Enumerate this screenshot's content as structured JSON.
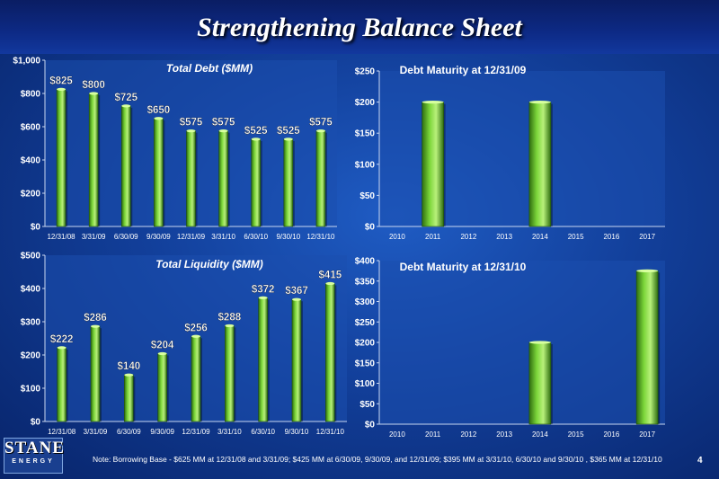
{
  "title": "Strengthening Balance Sheet",
  "footer_note": "Note: Borrowing Base - $625 MM at 12/31/08 and 3/31/09; $425 MM at 6/30/09, 9/30/09, and 12/31/09;  $395 MM at 3/31/10, 6/30/10 and 9/30/10 , $365 MM at 12/31/10",
  "page_number": "4",
  "logo": {
    "word": "STANE",
    "sub": "ENERGY"
  },
  "colors": {
    "bar": "#7cd63a",
    "bar_dark": "#2f6e10",
    "plot_bg": "#1b4fae",
    "grid": "#4f7fd0"
  },
  "chart_data": [
    {
      "type": "bar",
      "title": "Total Debt ($MM)",
      "categories": [
        "12/31/08",
        "3/31/09",
        "6/30/09",
        "9/30/09",
        "12/31/09",
        "3/31/10",
        "6/30/10",
        "9/30/10",
        "12/31/10"
      ],
      "values": [
        825,
        800,
        725,
        650,
        575,
        575,
        525,
        525,
        575
      ],
      "data_labels": [
        "$825",
        "$800",
        "$725",
        "$650",
        "$575",
        "$575",
        "$525",
        "$525",
        "$575"
      ],
      "ylim": [
        0,
        1000
      ],
      "yticks": [
        0,
        200,
        400,
        600,
        800,
        1000
      ],
      "ytick_labels": [
        "$0",
        "$200",
        "$400",
        "$600",
        "$800",
        "$1,000"
      ],
      "grid": false
    },
    {
      "type": "bar",
      "title": "Debt Maturity at 12/31/09",
      "categories": [
        "2010",
        "2011",
        "2012",
        "2013",
        "2014",
        "2015",
        "2016",
        "2017"
      ],
      "values": [
        0,
        200,
        0,
        0,
        200,
        0,
        0,
        0
      ],
      "ylim": [
        0,
        250
      ],
      "yticks": [
        0,
        50,
        100,
        150,
        200,
        250
      ],
      "ytick_labels": [
        "$0",
        "$50",
        "$100",
        "$150",
        "$200",
        "$250"
      ],
      "grid": false
    },
    {
      "type": "bar",
      "title": "Total Liquidity ($MM)",
      "categories": [
        "12/31/08",
        "3/31/09",
        "6/30/09",
        "9/30/09",
        "12/31/09",
        "3/31/10",
        "6/30/10",
        "9/30/10",
        "12/31/10"
      ],
      "values": [
        222,
        286,
        140,
        204,
        256,
        288,
        372,
        367,
        415
      ],
      "data_labels": [
        "$222",
        "$286",
        "$140",
        "$204",
        "$256",
        "$288",
        "$372",
        "$367",
        "$415"
      ],
      "ylim": [
        0,
        500
      ],
      "yticks": [
        0,
        100,
        200,
        300,
        400,
        500
      ],
      "ytick_labels": [
        "$0",
        "$100",
        "$200",
        "$300",
        "$400",
        "$500"
      ],
      "grid": false
    },
    {
      "type": "bar",
      "title": "Debt Maturity at 12/31/10",
      "categories": [
        "2010",
        "2011",
        "2012",
        "2013",
        "2014",
        "2015",
        "2016",
        "2017"
      ],
      "values": [
        0,
        0,
        0,
        0,
        200,
        0,
        0,
        375
      ],
      "ylim": [
        0,
        400
      ],
      "yticks": [
        0,
        50,
        100,
        150,
        200,
        250,
        300,
        350,
        400
      ],
      "ytick_labels": [
        "$0",
        "$50",
        "$100",
        "$150",
        "$200",
        "$250",
        "$300",
        "$350",
        "$400"
      ],
      "grid": false
    }
  ]
}
